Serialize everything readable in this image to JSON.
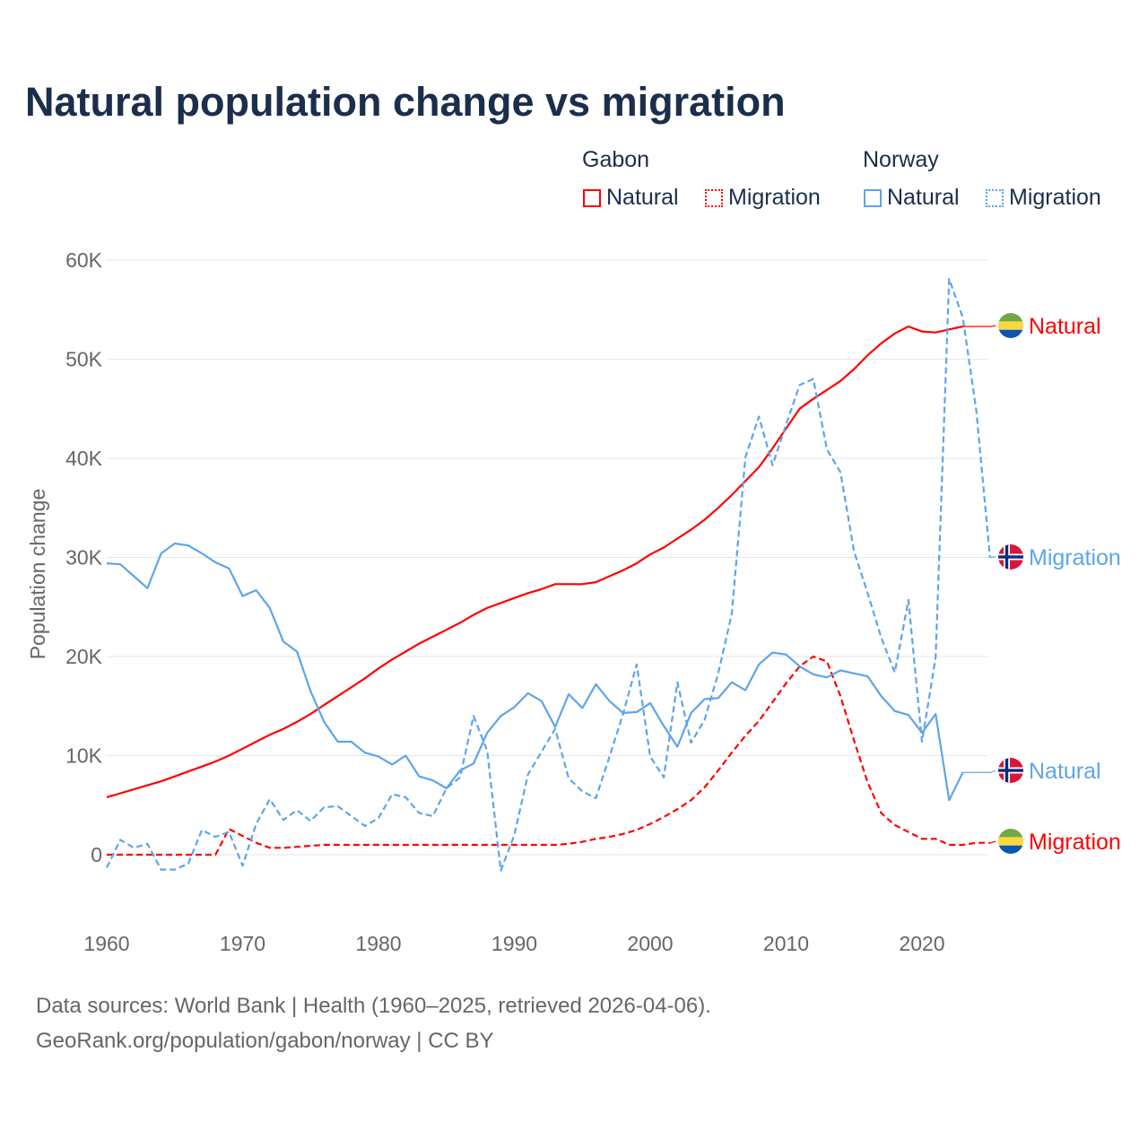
{
  "chart_data": {
    "type": "line",
    "title": "Natural population change vs migration",
    "ylabel": "Population change",
    "xlabel": "",
    "xlim": [
      1960,
      2025
    ],
    "ylim": [
      -5000,
      60000
    ],
    "x_ticks": [
      "1960",
      "1970",
      "1980",
      "1990",
      "2000",
      "2010",
      "2020"
    ],
    "y_ticks": [
      {
        "v": 0,
        "label": "0"
      },
      {
        "v": 10000,
        "label": "10K"
      },
      {
        "v": 20000,
        "label": "20K"
      },
      {
        "v": 30000,
        "label": "30K"
      },
      {
        "v": 40000,
        "label": "40K"
      },
      {
        "v": 50000,
        "label": "50K"
      },
      {
        "v": 60000,
        "label": "60K"
      }
    ],
    "grid": true,
    "legend": {
      "placement": "top-right",
      "groups": [
        {
          "country": "Gabon",
          "items": [
            "Natural",
            "Migration"
          ]
        },
        {
          "country": "Norway",
          "items": [
            "Natural",
            "Migration"
          ]
        }
      ]
    },
    "series": [
      {
        "name": "Gabon Natural",
        "country": "Gabon",
        "label": "Natural",
        "color": "#ff0000",
        "dash": false,
        "start": 1960,
        "values": [
          5800,
          6200,
          6600,
          7000,
          7400,
          7900,
          8400,
          8900,
          9400,
          10000,
          10700,
          11400,
          12100,
          12700,
          13400,
          14200,
          15100,
          16000,
          16900,
          17800,
          18800,
          19700,
          20500,
          21300,
          22000,
          22700,
          23400,
          24200,
          24900,
          25400,
          25900,
          26400,
          26800,
          27300,
          27300,
          27300,
          27500,
          28100,
          28700,
          29400,
          30300,
          31000,
          31900,
          32800,
          33800,
          35000,
          36300,
          37700,
          39100,
          41000,
          43000,
          45000,
          46000,
          46900,
          47800,
          49000,
          50400,
          51600,
          52600,
          53300,
          52800,
          52700,
          53000,
          53300
        ]
      },
      {
        "name": "Gabon Migration",
        "country": "Gabon",
        "label": "Migration",
        "color": "#ff0000",
        "dash": true,
        "start": 1960,
        "values": [
          0,
          0,
          0,
          0,
          0,
          0,
          0,
          0,
          0,
          2600,
          1900,
          1200,
          700,
          700,
          800,
          900,
          1000,
          1000,
          1000,
          1000,
          1000,
          1000,
          1000,
          1000,
          1000,
          1000,
          1000,
          1000,
          1000,
          1000,
          1000,
          1000,
          1000,
          1000,
          1100,
          1300,
          1600,
          1800,
          2100,
          2500,
          3100,
          3800,
          4600,
          5500,
          6800,
          8500,
          10300,
          12000,
          13500,
          15400,
          17300,
          19000,
          20000,
          19500,
          16000,
          11500,
          7300,
          4200,
          3000,
          2300,
          1600,
          1600,
          1000,
          1000,
          1200,
          1200
        ]
      },
      {
        "name": "Norway Natural",
        "country": "Norway",
        "label": "Natural",
        "color": "#5da5ea",
        "dash": false,
        "start": 1960,
        "values": [
          29400,
          29300,
          28100,
          26900,
          30400,
          31400,
          31200,
          30400,
          29500,
          28900,
          26100,
          26700,
          24900,
          21500,
          20500,
          16500,
          13400,
          11400,
          11400,
          10300,
          9900,
          9100,
          10000,
          7900,
          7500,
          6700,
          8500,
          9200,
          12300,
          14000,
          14900,
          16300,
          15500,
          12900,
          16200,
          14800,
          17200,
          15500,
          14300,
          14400,
          15300,
          13000,
          10900,
          14300,
          15700,
          15800,
          17400,
          16600,
          19200,
          20400,
          20200,
          19000,
          18200,
          17900,
          18600,
          18300,
          18000,
          16000,
          14500,
          14100,
          12300,
          14200,
          5500,
          8300
        ]
      },
      {
        "name": "Norway Migration",
        "country": "Norway",
        "label": "Migration",
        "color": "#5da5ea",
        "dash": true,
        "start": 1960,
        "values": [
          -1300,
          1500,
          700,
          1100,
          -1500,
          -1500,
          -900,
          2500,
          1800,
          2300,
          -1100,
          3100,
          5600,
          3500,
          4500,
          3400,
          4800,
          4900,
          3900,
          2900,
          3700,
          6100,
          5800,
          4200,
          3900,
          6700,
          7800,
          14000,
          10500,
          -1600,
          2000,
          8100,
          10400,
          12700,
          7700,
          6400,
          5700,
          9900,
          14200,
          19200,
          9900,
          7800,
          17400,
          11300,
          13600,
          18300,
          24300,
          40100,
          44200,
          39300,
          43400,
          47400,
          48000,
          40900,
          38600,
          30600,
          26400,
          21900,
          18400,
          25700,
          11400,
          19900,
          58100,
          54200,
          44800,
          30000
        ]
      }
    ]
  },
  "legend_labels": {
    "gabon": "Gabon",
    "norway": "Norway",
    "natural": "Natural",
    "migration": "Migration"
  },
  "footer": {
    "line1": "Data sources: World Bank | Health (1960–2025, retrieved 2026-04-06).",
    "line2": "GeoRank.org/population/gabon/norway | CC BY"
  }
}
